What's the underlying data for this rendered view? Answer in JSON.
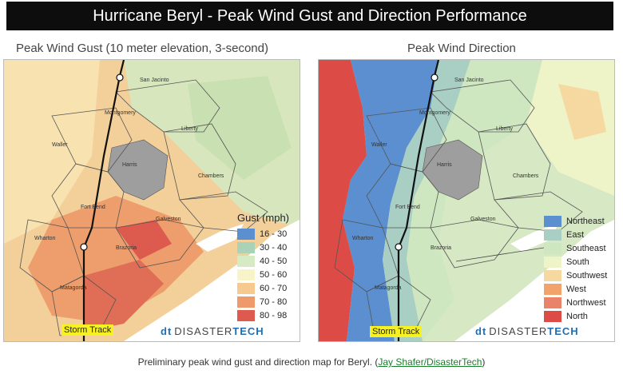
{
  "banner": {
    "title": "Hurricane Beryl - Peak Wind Gust and Direction Performance"
  },
  "left_map": {
    "title": "Peak Wind Gust (10 meter elevation, 3-second)",
    "legend_title": "Gust (mph)",
    "legend": [
      {
        "label": "16 - 30",
        "color": "#5b8fd0"
      },
      {
        "label": "30 - 40",
        "color": "#a9d2b7"
      },
      {
        "label": "40 - 50",
        "color": "#d6ebc3"
      },
      {
        "label": "50 - 60",
        "color": "#f7f4c9"
      },
      {
        "label": "60 - 70",
        "color": "#f6c98f"
      },
      {
        "label": "70 - 80",
        "color": "#ee9a6a"
      },
      {
        "label": "80 - 98",
        "color": "#dc5a4e"
      }
    ]
  },
  "right_map": {
    "title": "Peak Wind Direction",
    "legend": [
      {
        "label": "Northeast",
        "color": "#5b8fd0"
      },
      {
        "label": "East",
        "color": "#a9cfc4"
      },
      {
        "label": "Southeast",
        "color": "#cfe7c0"
      },
      {
        "label": "South",
        "color": "#eef4c7"
      },
      {
        "label": "Southwest",
        "color": "#f6d8a1"
      },
      {
        "label": "West",
        "color": "#f1a36b"
      },
      {
        "label": "Northwest",
        "color": "#e9836a"
      },
      {
        "label": "North",
        "color": "#dd4b46"
      }
    ]
  },
  "counties": [
    "San Jacinto",
    "Montgomery",
    "Liberty",
    "Waller",
    "Harris",
    "Chambers",
    "Fort Bend",
    "Galveston",
    "Wharton",
    "Brazoria",
    "Matagorda"
  ],
  "storm_track_label": "Storm Track",
  "brand": {
    "mark": "dt",
    "word1": "DISASTER",
    "word2": "TECH"
  },
  "caption": {
    "text": "Preliminary peak wind gust and direction map for Beryl. (",
    "link": "Jay Shafer/DisasterTech",
    "close": ")"
  }
}
